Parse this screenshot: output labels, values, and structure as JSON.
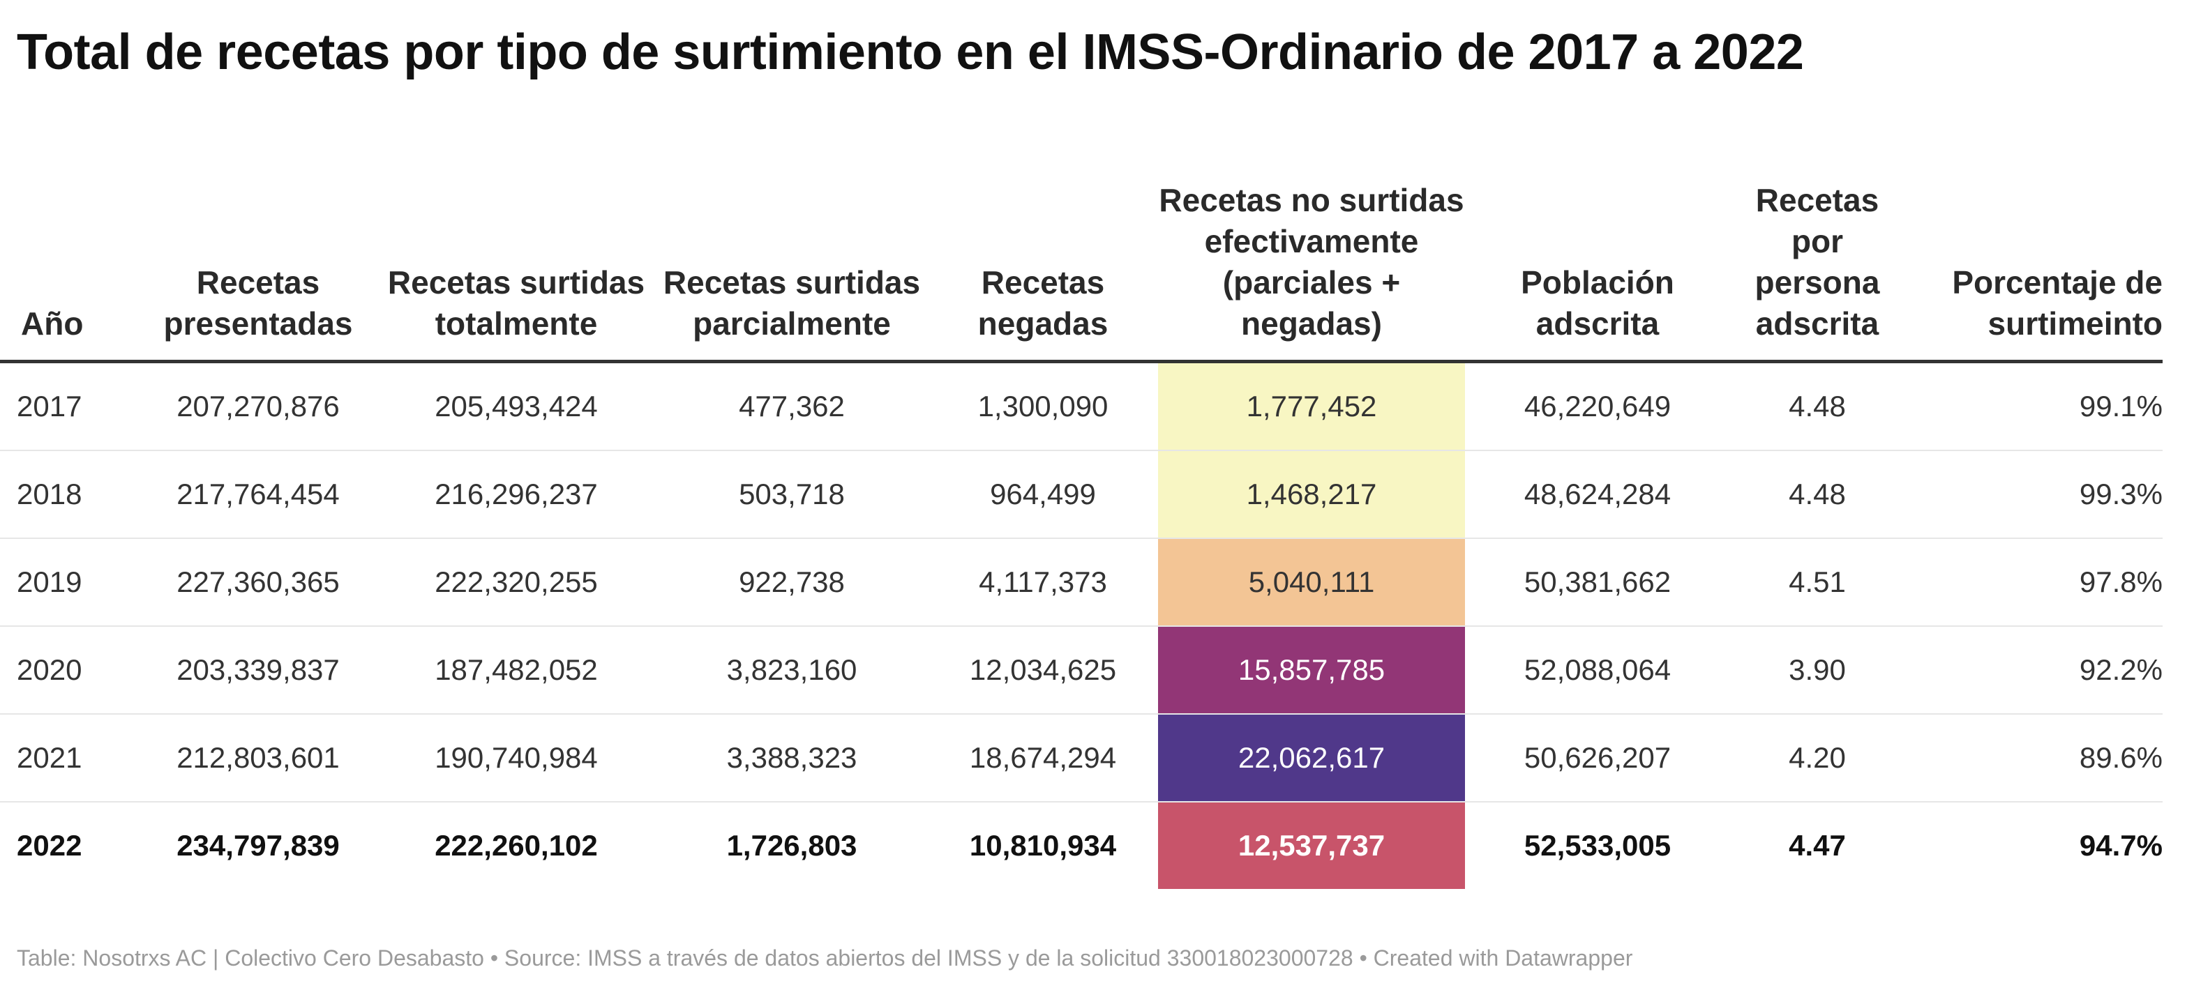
{
  "title": "Total de recetas por tipo de surtimiento en el IMSS-Ordinario de 2017 a 2022",
  "footer": "Table: Nosotrxs AC | Colectivo Cero Desabasto • Source: IMSS a través de datos abiertos del IMSS y de la solicitud 330018023000728 • Created with Datawrapper",
  "chart_data": {
    "type": "table",
    "columns": [
      "Año",
      "Recetas presentadas",
      "Recetas surtidas totalmente",
      "Recetas surtidas parcialmente",
      "Recetas negadas",
      "Recetas no surtidas efectivamente (parciales + negadas)",
      "Población adscrita",
      "Recetas por persona adscrita",
      "Porcentaje de surtimeinto"
    ],
    "rows": [
      [
        "2017",
        "207,270,876",
        "205,493,424",
        "477,362",
        "1,300,090",
        "1,777,452",
        "46,220,649",
        "4.48",
        "99.1%"
      ],
      [
        "2018",
        "217,764,454",
        "216,296,237",
        "503,718",
        "964,499",
        "1,468,217",
        "48,624,284",
        "4.48",
        "99.3%"
      ],
      [
        "2019",
        "227,360,365",
        "222,320,255",
        "922,738",
        "4,117,373",
        "5,040,111",
        "50,381,662",
        "4.51",
        "97.8%"
      ],
      [
        "2020",
        "203,339,837",
        "187,482,052",
        "3,823,160",
        "12,034,625",
        "15,857,785",
        "52,088,064",
        "3.90",
        "92.2%"
      ],
      [
        "2021",
        "212,803,601",
        "190,740,984",
        "3,388,323",
        "18,674,294",
        "22,062,617",
        "50,626,207",
        "4.20",
        "89.6%"
      ],
      [
        "2022",
        "234,797,839",
        "222,260,102",
        "1,726,803",
        "10,810,934",
        "12,537,737",
        "52,533,005",
        "4.47",
        "94.7%"
      ]
    ],
    "highlighted_column": 5,
    "heat_colors": [
      "#f8f6c3",
      "#f8f6c3",
      "#f3c595",
      "#923676",
      "#50388a",
      "#c8546a"
    ],
    "heat_text_colors": [
      "#333333",
      "#333333",
      "#333333",
      "#ffffff",
      "#ffffff",
      "#ffffff"
    ],
    "bold_row": 5
  }
}
